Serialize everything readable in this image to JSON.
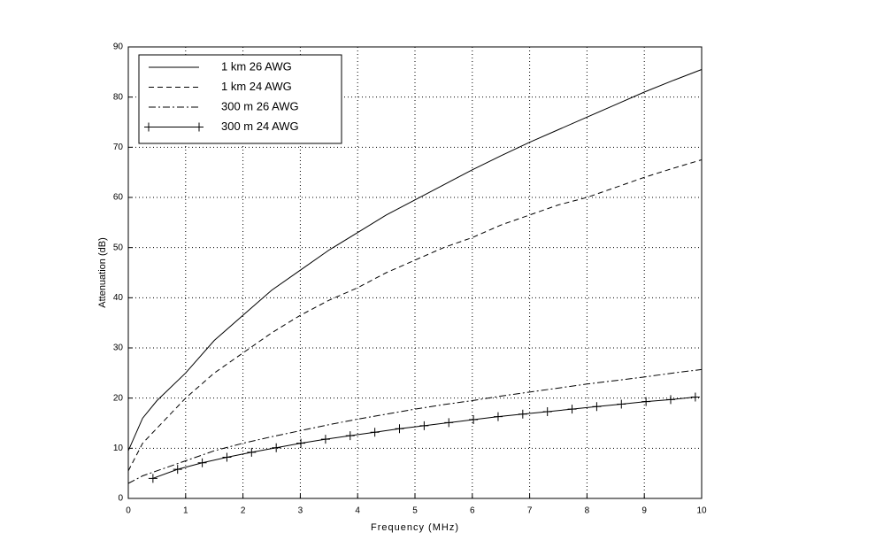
{
  "chart_data": {
    "type": "line",
    "xlabel": "Frequency (MHz)",
    "ylabel": "Attenuation (dB)",
    "xlim": [
      0,
      10
    ],
    "ylim": [
      0,
      90
    ],
    "xticks": [
      0,
      1,
      2,
      3,
      4,
      5,
      6,
      7,
      8,
      9,
      10
    ],
    "yticks": [
      0,
      10,
      20,
      30,
      40,
      50,
      60,
      70,
      80,
      90
    ],
    "grid": true,
    "legend": "upper left",
    "series": [
      {
        "name": "1 km 26 AWG",
        "color": "#000000",
        "style": "solid",
        "x": [
          0,
          0.25,
          0.5,
          1,
          1.5,
          2,
          2.5,
          3,
          3.5,
          4,
          4.5,
          5,
          5.5,
          6,
          6.5,
          7,
          7.5,
          8,
          8.5,
          9,
          9.5,
          10
        ],
        "values": [
          9.5,
          16,
          19.5,
          25,
          31.5,
          36.5,
          41.5,
          45.5,
          49.5,
          53,
          56.5,
          59.5,
          62.5,
          65.5,
          68.3,
          71,
          73.5,
          76,
          78.5,
          81,
          83.3,
          85.5
        ]
      },
      {
        "name": "1 km 24 AWG",
        "color": "#000000",
        "style": "dashed",
        "x": [
          0,
          0.25,
          0.5,
          1,
          1.5,
          2,
          2.5,
          3,
          3.5,
          4,
          4.5,
          5,
          5.5,
          6,
          6.5,
          7,
          7.5,
          8,
          8.5,
          9,
          9.5,
          10
        ],
        "values": [
          5.5,
          11,
          14,
          20,
          25,
          29,
          33,
          36.5,
          39.5,
          42,
          45,
          47.5,
          50,
          52,
          54.5,
          56.5,
          58.5,
          60,
          62,
          64,
          65.8,
          67.5
        ]
      },
      {
        "name": "300 m 26 AWG",
        "color": "#000000",
        "style": "dashdot",
        "x": [
          0,
          0.25,
          0.5,
          1,
          1.5,
          2,
          2.5,
          3,
          3.5,
          4,
          4.5,
          5,
          5.5,
          6,
          6.5,
          7,
          7.5,
          8,
          8.5,
          9,
          9.5,
          10
        ],
        "values": [
          3,
          4.5,
          5.5,
          7.5,
          9.5,
          11,
          12.3,
          13.5,
          14.7,
          15.8,
          16.8,
          17.8,
          18.7,
          19.5,
          20.4,
          21.2,
          22,
          22.8,
          23.5,
          24.2,
          25,
          25.7
        ]
      },
      {
        "name": "300 m 24 AWG",
        "color": "#000000",
        "style": "solid",
        "marker": "+",
        "x": [
          0.43,
          0.86,
          1.29,
          1.72,
          2.15,
          2.58,
          3.01,
          3.44,
          3.87,
          4.3,
          4.73,
          5.16,
          5.59,
          6.02,
          6.45,
          6.88,
          7.31,
          7.74,
          8.17,
          8.6,
          9.03,
          9.46,
          9.89
        ],
        "values": [
          4,
          5.8,
          7.1,
          8.2,
          9.2,
          10.1,
          11,
          11.8,
          12.5,
          13.2,
          13.9,
          14.5,
          15.1,
          15.7,
          16.3,
          16.8,
          17.3,
          17.8,
          18.3,
          18.8,
          19.3,
          19.7,
          20.2
        ]
      }
    ]
  }
}
